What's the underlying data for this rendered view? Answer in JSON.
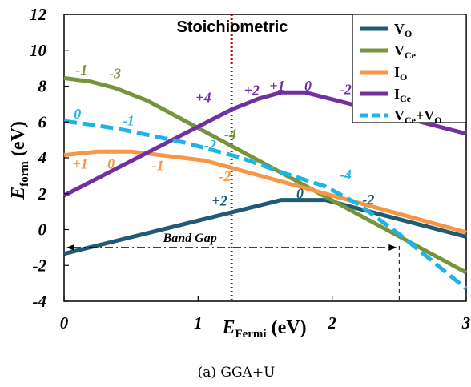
{
  "chart_data": {
    "type": "line",
    "title": "Stoichiometric",
    "caption": "(a) GGA+U",
    "xlabel": {
      "main": "E",
      "sub": "Fermi",
      "unit": " (eV)"
    },
    "ylabel": {
      "main": "E",
      "sub": "form",
      "unit": " (eV)"
    },
    "xlim": [
      0,
      3
    ],
    "ylim": [
      -4,
      12
    ],
    "x_ticks": [
      "0",
      "1",
      "2",
      "3"
    ],
    "y_ticks": [
      "-4",
      "-2",
      "0",
      "2",
      "4",
      "6",
      "8",
      "10",
      "12"
    ],
    "grid": false,
    "legend_position": "top-right",
    "series": [
      {
        "name": "V_O",
        "label": "V",
        "label_sub": "O",
        "color": "#1f5c73",
        "dash": "solid",
        "x": [
          0,
          1.62,
          1.95,
          3.0
        ],
        "y": [
          -1.35,
          1.65,
          1.65,
          -0.4
        ]
      },
      {
        "name": "V_Ce",
        "label": "V",
        "label_sub": "Ce",
        "color": "#77933c",
        "dash": "solid",
        "x": [
          0,
          0.2,
          0.38,
          0.62,
          3.0
        ],
        "y": [
          8.45,
          8.25,
          7.9,
          7.2,
          -2.4
        ]
      },
      {
        "name": "I_O",
        "label": "I",
        "label_sub": "O",
        "color": "#f79646",
        "dash": "solid",
        "x": [
          0,
          0.25,
          0.5,
          1.05,
          3.0
        ],
        "y": [
          4.15,
          4.35,
          4.35,
          3.85,
          -0.15
        ]
      },
      {
        "name": "I_Ce",
        "label": "I",
        "label_sub": "Ce",
        "color": "#7030a0",
        "dash": "solid",
        "x": [
          0,
          1.25,
          1.45,
          1.62,
          1.8,
          3.0
        ],
        "y": [
          1.9,
          6.7,
          7.3,
          7.65,
          7.65,
          5.35
        ]
      },
      {
        "name": "V_Ce+V_O",
        "label": "V",
        "label_sub": "Ce",
        "label_rest": "+V",
        "label_sub2": "O",
        "color": "#1eb4e6",
        "dash": "dashed",
        "x": [
          0,
          0.25,
          0.45,
          0.9,
          1.3,
          1.62,
          1.95,
          2.2,
          2.5,
          3.0
        ],
        "y": [
          6.05,
          5.8,
          5.55,
          4.85,
          4.05,
          3.2,
          2.4,
          1.4,
          -0.25,
          -3.3
        ]
      }
    ],
    "annotations": [
      {
        "text": "-1",
        "x": 0.13,
        "y": 8.65,
        "series": "V_Ce"
      },
      {
        "text": "-3",
        "x": 0.38,
        "y": 8.45,
        "series": "V_Ce"
      },
      {
        "text": "-4",
        "x": 1.24,
        "y": 5.05,
        "series": "V_Ce"
      },
      {
        "text": "0",
        "x": 0.1,
        "y": 6.2,
        "series": "V_Ce+V_O"
      },
      {
        "text": "-1",
        "x": 0.48,
        "y": 5.8,
        "series": "V_Ce+V_O"
      },
      {
        "text": "-2",
        "x": 1.09,
        "y": 4.45,
        "series": "V_Ce+V_O"
      },
      {
        "text": "-4",
        "x": 2.1,
        "y": 2.8,
        "series": "V_Ce+V_O"
      },
      {
        "text": "+1",
        "x": 0.12,
        "y": 3.4,
        "series": "I_O"
      },
      {
        "text": "0",
        "x": 0.35,
        "y": 3.4,
        "series": "I_O"
      },
      {
        "text": "-1",
        "x": 0.7,
        "y": 3.3,
        "series": "I_O"
      },
      {
        "text": "-2",
        "x": 1.2,
        "y": 2.7,
        "series": "I_O"
      },
      {
        "text": "+4",
        "x": 1.04,
        "y": 7.1,
        "series": "I_Ce"
      },
      {
        "text": "+2",
        "x": 1.4,
        "y": 7.5,
        "series": "I_Ce"
      },
      {
        "text": "+1",
        "x": 1.59,
        "y": 7.75,
        "series": "I_Ce"
      },
      {
        "text": "0",
        "x": 1.82,
        "y": 7.75,
        "series": "I_Ce"
      },
      {
        "text": "-2",
        "x": 2.1,
        "y": 7.55,
        "series": "I_Ce"
      },
      {
        "text": "+2",
        "x": 1.16,
        "y": 1.35,
        "series": "V_O"
      },
      {
        "text": "0",
        "x": 1.76,
        "y": 1.75,
        "series": "V_O"
      },
      {
        "text": "-2",
        "x": 2.27,
        "y": 1.4,
        "series": "V_O"
      }
    ],
    "band_gap": {
      "label": "Band Gap",
      "x_start": 0,
      "x_end": 2.5,
      "y": -1.0
    },
    "vertical_lines": [
      {
        "x": 1.25,
        "color": "#c00000",
        "style": "dotted"
      },
      {
        "x": 2.5,
        "color": "#000000",
        "style": "dashed"
      }
    ]
  }
}
